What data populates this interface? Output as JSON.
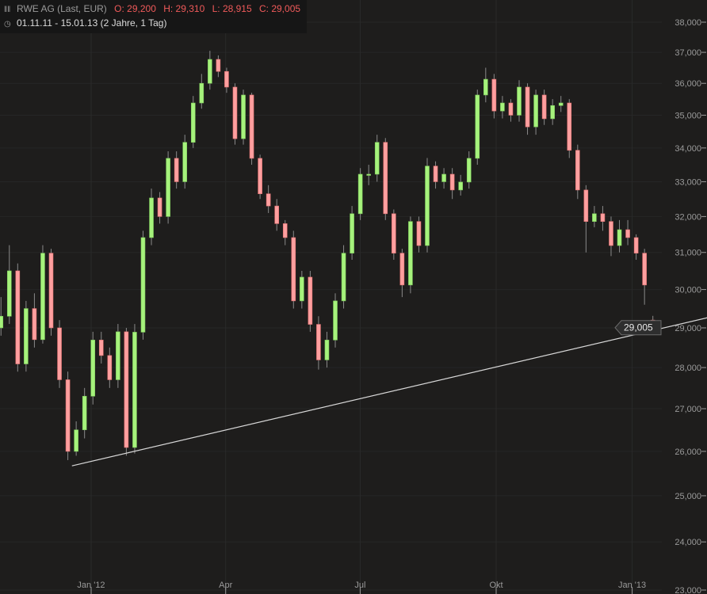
{
  "header": {
    "title": "RWE AG (Last, EUR)",
    "open": "O: 29,200",
    "high": "H: 29,310",
    "low": "L: 28,915",
    "close": "C: 29,005",
    "range": "01.11.11 - 15.01.13 (2 Jahre, 1 Tag)"
  },
  "chart_data": {
    "type": "candlestick",
    "date_range": [
      "2011-11-01",
      "2013-01-15"
    ],
    "y_scale": "log",
    "ylim": [
      23000,
      38000
    ],
    "yticks": [
      23000,
      24000,
      25000,
      26000,
      27000,
      28000,
      29000,
      30000,
      31000,
      32000,
      33000,
      34000,
      35000,
      36000,
      37000,
      38000
    ],
    "ytick_labels": [
      "23,000",
      "24,000",
      "25,000",
      "26,000",
      "27,000",
      "28,000",
      "29,000",
      "30,000",
      "31,000",
      "32,000",
      "33,000",
      "34,000",
      "35,000",
      "36,000",
      "37,000",
      "38,000"
    ],
    "xticks": [
      {
        "label": "Jan '12",
        "date": "2012-01-01"
      },
      {
        "label": "Apr",
        "date": "2012-04-01"
      },
      {
        "label": "Jul",
        "date": "2012-07-01"
      },
      {
        "label": "Okt",
        "date": "2012-10-01"
      },
      {
        "label": "Jan '13",
        "date": "2013-01-01"
      }
    ],
    "last_price_label": "29,005",
    "trendline": {
      "from": {
        "date": "2011-12-19",
        "value": 25670
      },
      "to": {
        "date": "2013-02-23",
        "value": 29280
      }
    },
    "colors": {
      "up": "#a6f27c",
      "down": "#ff9f9f",
      "wick": "#8a8a8a",
      "trendline": "#d8d8d8",
      "background": "#1e1d1c"
    },
    "grid": true,
    "candles": [
      [
        29000,
        29800,
        28800,
        29300
      ],
      [
        29300,
        31200,
        29100,
        30500
      ],
      [
        30500,
        30700,
        27900,
        28090
      ],
      [
        28090,
        29700,
        27900,
        29500
      ],
      [
        29500,
        29900,
        28500,
        28700
      ],
      [
        28700,
        31200,
        28600,
        30980
      ],
      [
        30980,
        31100,
        28800,
        29000
      ],
      [
        29000,
        29200,
        27500,
        27700
      ],
      [
        27700,
        27900,
        25800,
        26000
      ],
      [
        26000,
        26700,
        25900,
        26500
      ],
      [
        26500,
        27500,
        26300,
        27300
      ],
      [
        27300,
        28900,
        27100,
        28690
      ],
      [
        28690,
        28900,
        28100,
        28300
      ],
      [
        28300,
        28500,
        27500,
        27700
      ],
      [
        27700,
        29100,
        27500,
        28900
      ],
      [
        28900,
        29000,
        25900,
        26090
      ],
      [
        26090,
        29100,
        25950,
        28890
      ],
      [
        28890,
        31600,
        28700,
        31410
      ],
      [
        31410,
        32800,
        31200,
        32530
      ],
      [
        32530,
        32700,
        31800,
        32000
      ],
      [
        32000,
        33900,
        31800,
        33690
      ],
      [
        33690,
        33900,
        32800,
        33000
      ],
      [
        33000,
        34400,
        32800,
        34170
      ],
      [
        34170,
        35600,
        34000,
        35380
      ],
      [
        35380,
        36300,
        35200,
        36000
      ],
      [
        36000,
        37050,
        35800,
        36770
      ],
      [
        36770,
        36900,
        36200,
        36380
      ],
      [
        36380,
        36500,
        35700,
        35880
      ],
      [
        35880,
        36000,
        34100,
        34280
      ],
      [
        34280,
        35800,
        34100,
        35630
      ],
      [
        35630,
        35700,
        33500,
        33690
      ],
      [
        33690,
        33800,
        32500,
        32650
      ],
      [
        32650,
        32900,
        32100,
        32300
      ],
      [
        32300,
        32500,
        31600,
        31800
      ],
      [
        31800,
        31900,
        31200,
        31410
      ],
      [
        31410,
        31600,
        29500,
        29700
      ],
      [
        29700,
        30500,
        29500,
        30330
      ],
      [
        30330,
        30500,
        28900,
        29090
      ],
      [
        29090,
        29300,
        27950,
        28190
      ],
      [
        28190,
        28900,
        28000,
        28690
      ],
      [
        28690,
        29900,
        28500,
        29700
      ],
      [
        29700,
        31200,
        29500,
        30980
      ],
      [
        30980,
        32300,
        30800,
        32080
      ],
      [
        32080,
        33400,
        31900,
        33220
      ],
      [
        33220,
        33500,
        32900,
        33220
      ],
      [
        33220,
        34400,
        33000,
        34170
      ],
      [
        34170,
        34300,
        31900,
        32080
      ],
      [
        32080,
        32200,
        30800,
        30980
      ],
      [
        30980,
        31100,
        29800,
        30120
      ],
      [
        30120,
        32000,
        29900,
        31860
      ],
      [
        31860,
        32000,
        31000,
        31190
      ],
      [
        31190,
        33700,
        31000,
        33460
      ],
      [
        33460,
        33600,
        32800,
        33000
      ],
      [
        33000,
        33400,
        32800,
        33220
      ],
      [
        33220,
        33400,
        32500,
        32760
      ],
      [
        32760,
        33200,
        32600,
        32990
      ],
      [
        32990,
        33900,
        32800,
        33690
      ],
      [
        33690,
        35800,
        33500,
        35630
      ],
      [
        35630,
        36500,
        35400,
        36130
      ],
      [
        36130,
        36300,
        34900,
        35130
      ],
      [
        35130,
        35600,
        34900,
        35380
      ],
      [
        35380,
        35500,
        34800,
        35000
      ],
      [
        35000,
        36100,
        34800,
        35880
      ],
      [
        35880,
        36000,
        34400,
        34640
      ],
      [
        34640,
        35800,
        34400,
        35630
      ],
      [
        35630,
        35800,
        34700,
        34890
      ],
      [
        34890,
        35500,
        34700,
        35300
      ],
      [
        35300,
        35600,
        35100,
        35380
      ],
      [
        35380,
        35500,
        33700,
        33930
      ],
      [
        33930,
        34100,
        32500,
        32760
      ],
      [
        32760,
        32900,
        31000,
        31860
      ],
      [
        31860,
        32300,
        31700,
        32080
      ],
      [
        32080,
        32300,
        31600,
        31860
      ],
      [
        31860,
        32000,
        30900,
        31190
      ],
      [
        31190,
        31900,
        31000,
        31630
      ],
      [
        31630,
        31900,
        31200,
        31410
      ],
      [
        31410,
        31500,
        30800,
        30980
      ],
      [
        30980,
        31100,
        29600,
        30120
      ],
      [
        29200,
        29310,
        28915,
        29005
      ]
    ]
  }
}
